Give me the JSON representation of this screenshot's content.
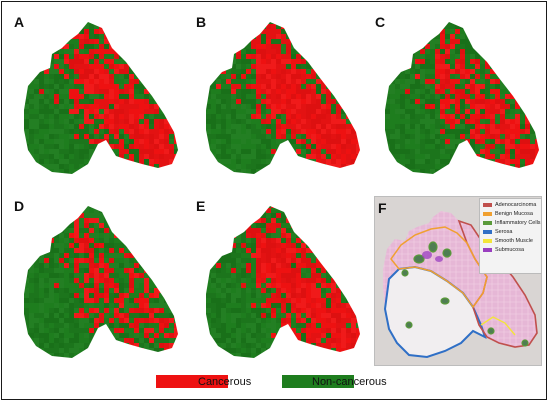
{
  "panels": [
    {
      "label": "A",
      "cancer_fraction": 0.48
    },
    {
      "label": "B",
      "cancer_fraction": 0.62
    },
    {
      "label": "C",
      "cancer_fraction": 0.36
    },
    {
      "label": "D",
      "cancer_fraction": 0.22
    },
    {
      "label": "E",
      "cancer_fraction": 0.55
    }
  ],
  "histology": {
    "label": "F",
    "legend": [
      {
        "name": "Adenocarcinoma",
        "color": "#c0504d"
      },
      {
        "name": "Benign Mucosa",
        "color": "#f0a030"
      },
      {
        "name": "Inflammatory Cells",
        "color": "#5a9a3a"
      },
      {
        "name": "Serosa",
        "color": "#2f6fc6"
      },
      {
        "name": "Smooth Muscle",
        "color": "#f3e53a"
      },
      {
        "name": "Submucosa",
        "color": "#9a3fc0"
      }
    ]
  },
  "legend": {
    "cancerous": {
      "label": "Cancerous",
      "color": "#ee1111"
    },
    "non_cancerous": {
      "label": "Non-cancerous",
      "color": "#1e7d1e"
    }
  }
}
